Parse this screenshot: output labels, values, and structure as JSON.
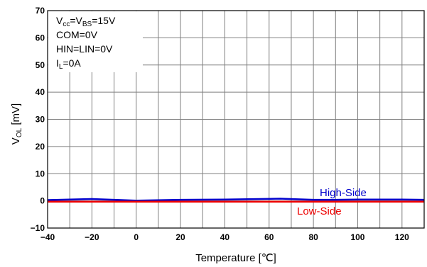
{
  "chart_data": {
    "type": "line",
    "xlabel": "Temperature [℃]",
    "ylabel": {
      "main": "V",
      "sub": "OL",
      "unit": " [mV]"
    },
    "xlim": [
      -40,
      130
    ],
    "ylim": [
      -10,
      70
    ],
    "xticks": [
      -40,
      -20,
      0,
      20,
      40,
      60,
      80,
      100,
      120
    ],
    "xtick_labels": [
      "−40",
      "−20",
      "0",
      "20",
      "40",
      "60",
      "80",
      "100",
      "120"
    ],
    "yticks": [
      -10,
      0,
      10,
      20,
      30,
      40,
      50,
      60,
      70
    ],
    "ytick_labels": [
      "−10",
      "0",
      "10",
      "20",
      "30",
      "40",
      "50",
      "60",
      "70"
    ],
    "x_minor_step": 10,
    "grid": true,
    "conditions": {
      "vcc": {
        "a": "V",
        "a_sub": "cc",
        "b": "=V",
        "b_sub": "BS",
        "c": "=15V"
      },
      "com": "COM=0V",
      "hin_lin": "HIN=LIN=0V",
      "il": {
        "a": "I",
        "a_sub": "L",
        "b": "=0A"
      }
    },
    "series": [
      {
        "name": "High-Side",
        "color": "#0000cc",
        "x": [
          -40,
          -20,
          0,
          20,
          40,
          65,
          80,
          90,
          100,
          120,
          130
        ],
        "values": [
          0.3,
          0.7,
          0.1,
          0.4,
          0.5,
          0.8,
          0.4,
          0.4,
          0.5,
          0.5,
          0.4
        ]
      },
      {
        "name": "Low-Side",
        "color": "#ee0000",
        "x": [
          -40,
          0,
          40,
          80,
          130
        ],
        "values": [
          -0.3,
          -0.3,
          -0.3,
          -0.3,
          -0.3
        ]
      }
    ]
  }
}
